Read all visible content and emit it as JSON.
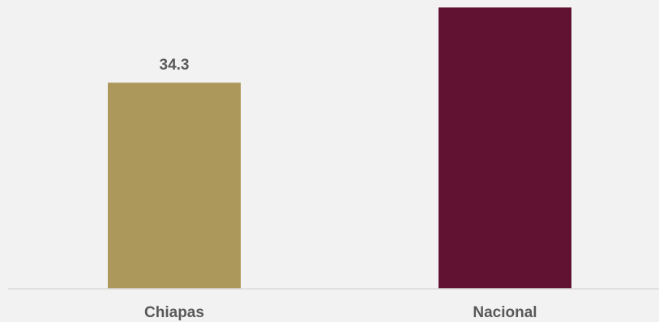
{
  "chart_data": {
    "type": "bar",
    "categories": [
      "Chiapas",
      "Nacional"
    ],
    "values": [
      34.3,
      46.8
    ],
    "data_labels": [
      "34.3",
      ""
    ],
    "title": "",
    "xlabel": "",
    "ylabel": "",
    "grid": false,
    "legend": "none"
  },
  "colors": {
    "background": "#f2f2f2",
    "bar_colors": [
      "#ad985c",
      "#611232"
    ],
    "axis": "#d9d9d9",
    "text": "#595959"
  }
}
